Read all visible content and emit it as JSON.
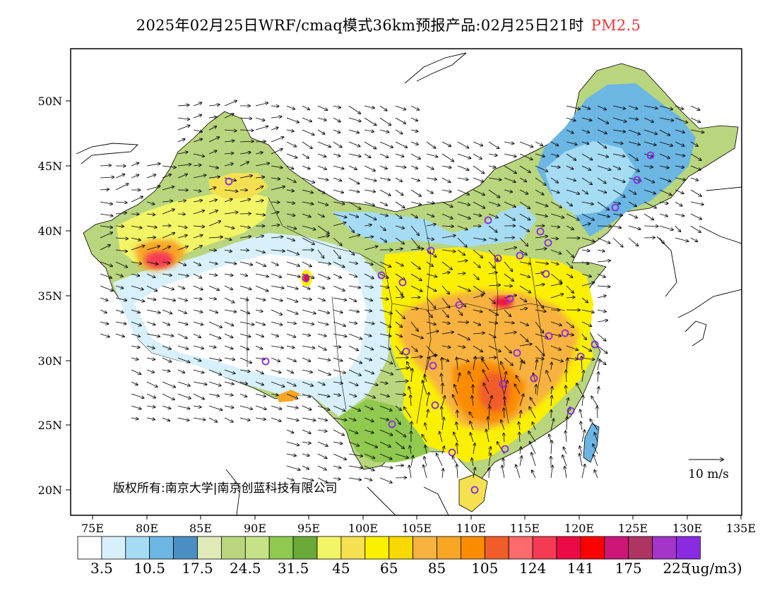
{
  "title": {
    "main": "2025年02月25日WRF/cmaq模式36km预报产品:02月25日21时",
    "species": "PM2.5",
    "species_color": "#e8383d"
  },
  "axes": {
    "lat_labels": [
      "50N",
      "45N",
      "40N",
      "35N",
      "30N",
      "25N",
      "20N"
    ],
    "lon_labels": [
      "75E",
      "80E",
      "85E",
      "90E",
      "95E",
      "100E",
      "105E",
      "110E",
      "115E",
      "120E",
      "125E",
      "130E",
      "135E"
    ]
  },
  "copyright": "版权所有:南京大学|南京创蓝科技有限公司",
  "wind_scale": {
    "label": "10 m/s"
  },
  "colorbar": {
    "unit": "(ug/m3)",
    "colors": [
      "#ffffff",
      "#d7f0fb",
      "#a5dcf4",
      "#6cb6e3",
      "#4a8fc4",
      "#dfeab8",
      "#b9d57e",
      "#c6e287",
      "#8fc94f",
      "#6aa93a",
      "#f2f566",
      "#f4e050",
      "#fbf000",
      "#f8d900",
      "#f7b240",
      "#f8a625",
      "#fb8c00",
      "#f15d2a",
      "#fd6a6c",
      "#f53a54",
      "#ec0a46",
      "#ff0000",
      "#cc1778",
      "#ae3461",
      "#a534c8",
      "#8a2be2"
    ],
    "labels": [
      "3.5",
      "10.5",
      "17.5",
      "24.5",
      "31.5",
      "45",
      "65",
      "85",
      "105",
      "124",
      "141",
      "175",
      "225"
    ]
  }
}
